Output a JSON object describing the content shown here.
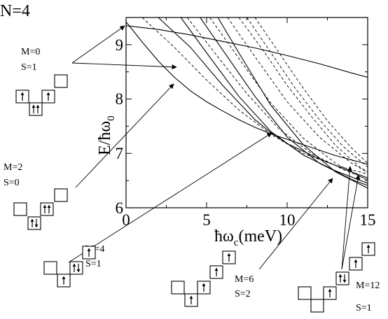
{
  "header": {
    "n_label": "N=4"
  },
  "chart_data": {
    "type": "line",
    "xlabel_main": "ħω",
    "xlabel_sub": "c",
    "xlabel_unit": "(meV)",
    "ylabel_main": "E/ħω",
    "ylabel_sub": "0",
    "xlim": [
      0,
      15
    ],
    "ylim": [
      6,
      9.5
    ],
    "x_ticks": [
      "0",
      "5",
      "10",
      "15"
    ],
    "y_ticks": [
      "6",
      "7",
      "8",
      "9"
    ],
    "grid": false,
    "series": [
      {
        "style": "solid",
        "x": [
          0,
          2,
          4,
          6,
          8,
          10,
          12,
          14,
          15
        ],
        "y": [
          9.35,
          9.28,
          9.18,
          9.06,
          8.94,
          8.8,
          8.65,
          8.48,
          8.4
        ]
      },
      {
        "style": "solid",
        "x": [
          0,
          1,
          2,
          3,
          4,
          5,
          6,
          7,
          8,
          9,
          10,
          11,
          12,
          13,
          14,
          15
        ],
        "y": [
          9.42,
          9.05,
          8.7,
          8.4,
          8.15,
          7.95,
          7.78,
          7.62,
          7.48,
          7.36,
          7.26,
          7.16,
          7.06,
          6.96,
          6.88,
          6.8
        ]
      },
      {
        "style": "solid",
        "x": [
          2,
          4,
          6,
          8,
          9,
          10,
          12,
          14,
          15
        ],
        "y": [
          9.5,
          8.95,
          8.25,
          7.62,
          7.38,
          7.18,
          6.9,
          6.66,
          6.55
        ]
      },
      {
        "style": "solid",
        "x": [
          3.4,
          5,
          7,
          9,
          11,
          13,
          15
        ],
        "y": [
          9.5,
          8.85,
          8.05,
          7.4,
          6.97,
          6.68,
          6.45
        ]
      },
      {
        "style": "solid",
        "x": [
          4.6,
          6,
          8,
          10,
          12,
          14,
          15
        ],
        "y": [
          9.5,
          8.9,
          8.05,
          7.3,
          6.82,
          6.52,
          6.41
        ]
      },
      {
        "style": "solid",
        "x": [
          5.7,
          7,
          9,
          11,
          13,
          15
        ],
        "y": [
          9.5,
          8.85,
          7.88,
          7.16,
          6.66,
          6.36
        ]
      },
      {
        "style": "dashed",
        "x": [
          1.0,
          3,
          5,
          7,
          9,
          11,
          13,
          15
        ],
        "y": [
          9.5,
          8.95,
          8.35,
          7.8,
          7.35,
          7.0,
          6.78,
          6.62
        ]
      },
      {
        "style": "dashed",
        "x": [
          3.8,
          5.5,
          7.5,
          9.5,
          11.5,
          13.5,
          15
        ],
        "y": [
          9.5,
          8.85,
          8.1,
          7.45,
          7.0,
          6.7,
          6.52
        ]
      },
      {
        "style": "dashed",
        "x": [
          5.2,
          7,
          9,
          11,
          13,
          15
        ],
        "y": [
          9.5,
          8.75,
          7.92,
          7.28,
          6.82,
          6.5
        ]
      },
      {
        "style": "dashed",
        "x": [
          6.3,
          8,
          10,
          12,
          14,
          15
        ],
        "y": [
          9.5,
          8.78,
          7.95,
          7.3,
          6.82,
          6.65
        ]
      },
      {
        "style": "dashed",
        "x": [
          7.0,
          8.5,
          10,
          11.5,
          13,
          14.5,
          15
        ],
        "y": [
          9.5,
          8.9,
          8.25,
          7.68,
          7.15,
          6.75,
          6.66
        ]
      },
      {
        "style": "dashed",
        "x": [
          7.5,
          9,
          10.5,
          12,
          13.5,
          15
        ],
        "y": [
          9.5,
          8.85,
          8.2,
          7.62,
          7.12,
          6.75
        ]
      },
      {
        "style": "dashed",
        "x": [
          8.0,
          9.5,
          11,
          12.5,
          14,
          15
        ],
        "y": [
          9.5,
          8.85,
          8.2,
          7.6,
          7.1,
          6.82
        ]
      }
    ],
    "annotations": [
      {
        "m": "M=0",
        "s": "S=1"
      },
      {
        "m": "M=2",
        "s": "S=0"
      },
      {
        "m": "M=4",
        "s": "S=1"
      },
      {
        "m": "M=6",
        "s": "S=2"
      },
      {
        "m": "M=12",
        "s": "S=1"
      }
    ]
  },
  "diagrams": [
    {
      "occupancy": [
        "up",
        "upup",
        "up",
        ""
      ]
    },
    {
      "occupancy": [
        "",
        "updown",
        "upup",
        ""
      ]
    },
    {
      "occupancy": [
        "",
        "up",
        "updown",
        "up"
      ]
    },
    {
      "occupancy": [
        "",
        "up",
        "up",
        "up"
      ]
    },
    {
      "occupancy": [
        "",
        "",
        "up",
        "updown",
        "up"
      ]
    }
  ]
}
